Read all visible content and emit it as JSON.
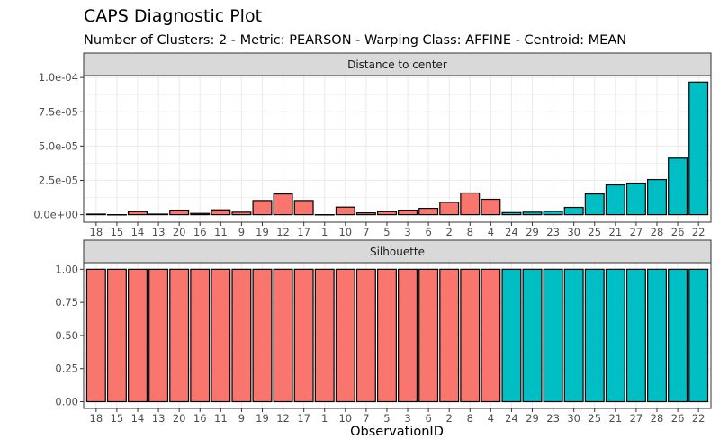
{
  "title": "CAPS Diagnostic Plot",
  "subtitle": "Number of Clusters: 2 - Metric: PEARSON - Warping Class: AFFINE - Centroid: MEAN",
  "colors": {
    "cluster1": "#F8766D",
    "cluster2": "#00BFC4",
    "strip": "#D9D9D9",
    "grid": "#EBEBEB"
  },
  "chart_data": [
    {
      "type": "bar",
      "panel_title": "Distance to center",
      "xlabel": "",
      "categories": [
        "18",
        "15",
        "14",
        "13",
        "20",
        "16",
        "11",
        "9",
        "19",
        "12",
        "17",
        "1",
        "10",
        "7",
        "5",
        "3",
        "6",
        "2",
        "8",
        "4",
        "24",
        "29",
        "23",
        "30",
        "25",
        "21",
        "27",
        "28",
        "26",
        "22"
      ],
      "cluster": [
        1,
        1,
        1,
        1,
        1,
        1,
        1,
        1,
        1,
        1,
        1,
        1,
        1,
        1,
        1,
        1,
        1,
        1,
        1,
        1,
        2,
        2,
        2,
        2,
        2,
        2,
        2,
        2,
        2,
        2
      ],
      "values": [
        4e-07,
        0,
        2.2e-06,
        4e-07,
        3.3e-06,
        9e-07,
        3.5e-06,
        1.8e-06,
        1.03e-05,
        1.51e-05,
        1.03e-05,
        0,
        5.5e-06,
        1.3e-06,
        2.2e-06,
        3.3e-06,
        4.6e-06,
        9e-06,
        1.58e-05,
        1.12e-05,
        1.5e-06,
        1.8e-06,
        2.4e-06,
        5.3e-06,
        1.51e-05,
        2.17e-05,
        2.3e-05,
        2.56e-05,
        4.12e-05,
        9.66e-05
      ],
      "ylim": [
        0,
        0.0001014
      ],
      "yticks": [
        0,
        2.5e-05,
        5e-05,
        7.5e-05,
        0.0001
      ],
      "ytick_labels": [
        "0.0e+00",
        "2.5e-05",
        "5.0e-05",
        "7.5e-05",
        "1.0e-04"
      ],
      "grid": true
    },
    {
      "type": "bar",
      "panel_title": "Silhouette",
      "xlabel": "ObservationID",
      "categories": [
        "18",
        "15",
        "14",
        "13",
        "20",
        "16",
        "11",
        "9",
        "19",
        "12",
        "17",
        "1",
        "10",
        "7",
        "5",
        "3",
        "6",
        "2",
        "8",
        "4",
        "24",
        "29",
        "23",
        "30",
        "25",
        "21",
        "27",
        "28",
        "26",
        "22"
      ],
      "cluster": [
        1,
        1,
        1,
        1,
        1,
        1,
        1,
        1,
        1,
        1,
        1,
        1,
        1,
        1,
        1,
        1,
        1,
        1,
        1,
        1,
        2,
        2,
        2,
        2,
        2,
        2,
        2,
        2,
        2,
        2
      ],
      "values": [
        1,
        1,
        1,
        1,
        1,
        1,
        1,
        1,
        1,
        1,
        1,
        1,
        1,
        1,
        1,
        1,
        1,
        1,
        1,
        1,
        1,
        1,
        1,
        1,
        1,
        1,
        1,
        1,
        1,
        1
      ],
      "ylim": [
        0,
        1.05
      ],
      "yticks": [
        0,
        0.25,
        0.5,
        0.75,
        1.0
      ],
      "ytick_labels": [
        "0.00",
        "0.25",
        "0.50",
        "0.75",
        "1.00"
      ],
      "grid": true
    }
  ]
}
